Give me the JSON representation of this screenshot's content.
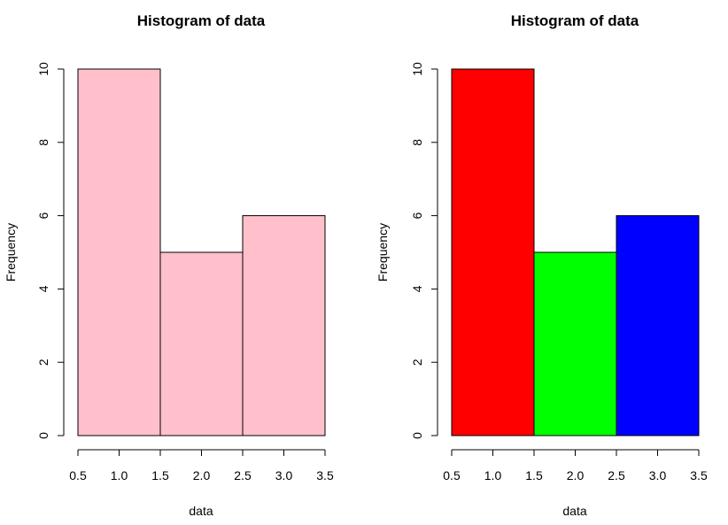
{
  "chart_data": [
    {
      "type": "bar",
      "title": "Histogram of data",
      "xlabel": "data",
      "ylabel": "Frequency",
      "bin_edges": [
        0.5,
        1.5,
        2.5,
        3.5
      ],
      "values": [
        10,
        5,
        6
      ],
      "bar_colors": [
        "#ffc0cb",
        "#ffc0cb",
        "#ffc0cb"
      ],
      "xlim": [
        0.5,
        3.5
      ],
      "ylim": [
        0,
        10
      ],
      "x_ticks": [
        0.5,
        1.0,
        1.5,
        2.0,
        2.5,
        3.0,
        3.5
      ],
      "x_tick_labels": [
        "0.5",
        "1.0",
        "1.5",
        "2.0",
        "2.5",
        "3.0",
        "3.5"
      ],
      "y_ticks": [
        0,
        2,
        4,
        6,
        8,
        10
      ],
      "y_tick_labels": [
        "0",
        "2",
        "4",
        "6",
        "8",
        "10"
      ],
      "grid": false,
      "legend": "none"
    },
    {
      "type": "bar",
      "title": "Histogram of data",
      "xlabel": "data",
      "ylabel": "Frequency",
      "bin_edges": [
        0.5,
        1.5,
        2.5,
        3.5
      ],
      "values": [
        10,
        5,
        6
      ],
      "bar_colors": [
        "#ff0000",
        "#00ff00",
        "#0000ff"
      ],
      "xlim": [
        0.5,
        3.5
      ],
      "ylim": [
        0,
        10
      ],
      "x_ticks": [
        0.5,
        1.0,
        1.5,
        2.0,
        2.5,
        3.0,
        3.5
      ],
      "x_tick_labels": [
        "0.5",
        "1.0",
        "1.5",
        "2.0",
        "2.5",
        "3.0",
        "3.5"
      ],
      "y_ticks": [
        0,
        2,
        4,
        6,
        8,
        10
      ],
      "y_tick_labels": [
        "0",
        "2",
        "4",
        "6",
        "8",
        "10"
      ],
      "grid": false,
      "legend": "none"
    }
  ]
}
